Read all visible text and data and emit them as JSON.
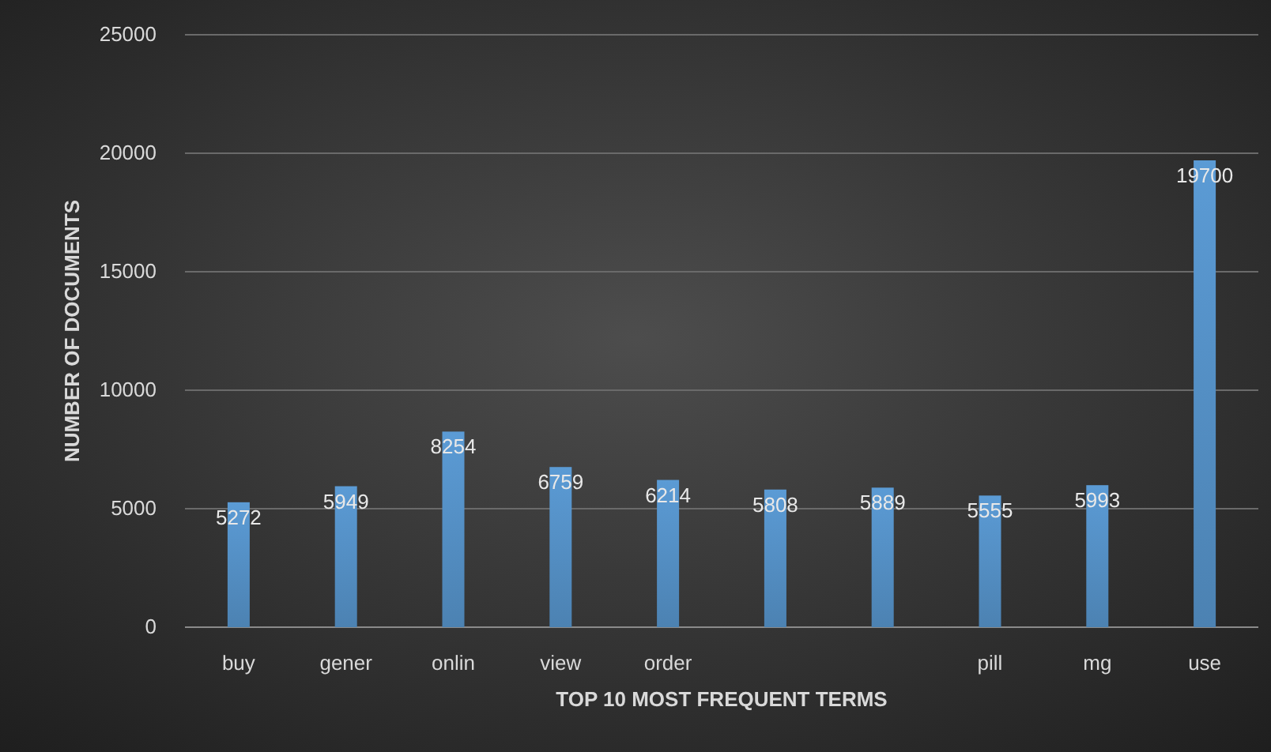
{
  "chart_data": {
    "type": "bar",
    "xlabel": "TOP 10 MOST FREQUENT TERMS",
    "ylabel": "NUMBER OF DOCUMENTS",
    "categories": [
      "buy",
      "gener",
      "onlin",
      "view",
      "order",
      null,
      null,
      "pill",
      "mg",
      "use"
    ],
    "values": [
      5272,
      5949,
      8254,
      6759,
      6214,
      5808,
      5889,
      5555,
      5993,
      19700
    ],
    "color": "#5b9bd5",
    "ylim": [
      0,
      25000
    ],
    "yticks": [
      0,
      5000,
      10000,
      15000,
      20000,
      25000
    ],
    "grid": "y",
    "data_labels": true
  }
}
